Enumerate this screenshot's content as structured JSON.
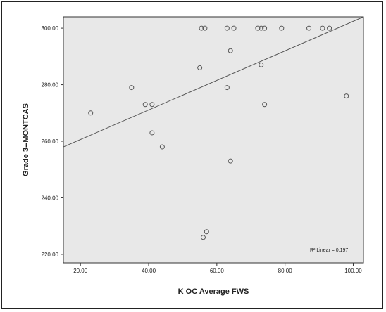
{
  "chart_data": {
    "type": "scatter",
    "title": "",
    "xlabel": "K OC Average FWS",
    "ylabel": "Grade 3--MONTCAS",
    "xlim": [
      15,
      103
    ],
    "ylim": [
      217,
      304
    ],
    "x_ticks": [
      "20.00",
      "40.00",
      "60.00",
      "80.00",
      "100.00"
    ],
    "x_tick_values": [
      20,
      40,
      60,
      80,
      100
    ],
    "y_ticks": [
      "220.00",
      "240.00",
      "260.00",
      "280.00",
      "300.00"
    ],
    "y_tick_values": [
      220,
      240,
      260,
      280,
      300
    ],
    "grid": false,
    "background": "#e8e8e8",
    "marker_color": "#555555",
    "line_color": "#555555",
    "fit_line": {
      "type": "linear",
      "x": [
        15,
        103
      ],
      "y": [
        258,
        304
      ]
    },
    "annotation": "R² Linear = 0.197",
    "points": [
      {
        "x": 23,
        "y": 270
      },
      {
        "x": 35,
        "y": 279
      },
      {
        "x": 39,
        "y": 273
      },
      {
        "x": 41,
        "y": 273
      },
      {
        "x": 41,
        "y": 263
      },
      {
        "x": 44,
        "y": 258
      },
      {
        "x": 55,
        "y": 286
      },
      {
        "x": 55.5,
        "y": 300
      },
      {
        "x": 56.5,
        "y": 300
      },
      {
        "x": 56,
        "y": 226
      },
      {
        "x": 57,
        "y": 228
      },
      {
        "x": 63,
        "y": 300
      },
      {
        "x": 63,
        "y": 279
      },
      {
        "x": 64,
        "y": 292
      },
      {
        "x": 64,
        "y": 253
      },
      {
        "x": 65,
        "y": 300
      },
      {
        "x": 72,
        "y": 300
      },
      {
        "x": 73,
        "y": 300
      },
      {
        "x": 73,
        "y": 287
      },
      {
        "x": 74,
        "y": 300
      },
      {
        "x": 74,
        "y": 273
      },
      {
        "x": 79,
        "y": 300
      },
      {
        "x": 87,
        "y": 300
      },
      {
        "x": 91,
        "y": 300
      },
      {
        "x": 93,
        "y": 300
      },
      {
        "x": 98,
        "y": 276
      }
    ]
  }
}
